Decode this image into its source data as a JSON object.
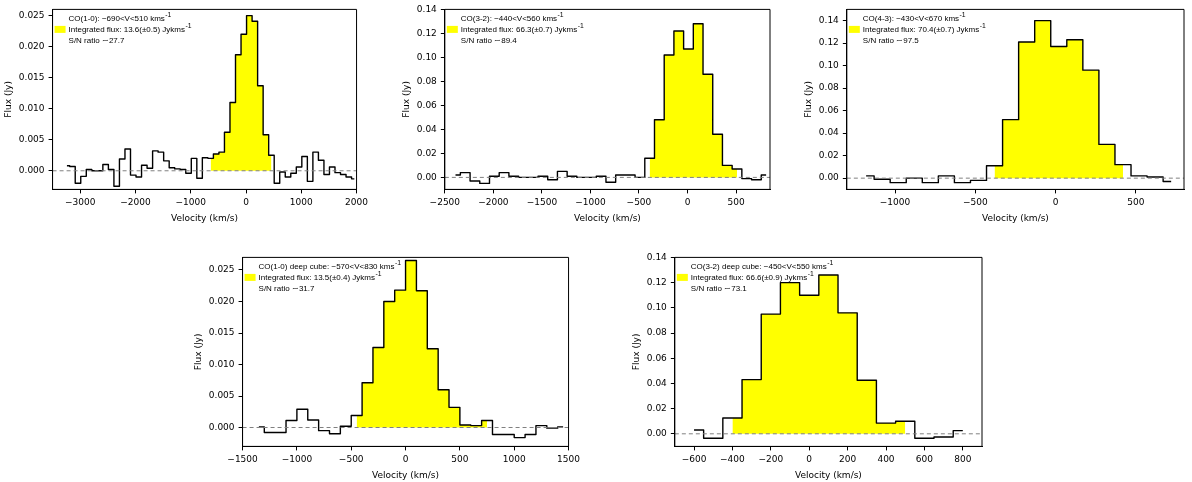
{
  "chart_data": [
    {
      "type": "step",
      "xlabel": "Velocity (km/s)",
      "ylabel": "Flux (Jy)",
      "legend": "top left",
      "annotations": [
        "CO(1-0): −690<V<510 kms$^{-1}$",
        "S/N ratio ∼27.7"
      ],
      "xlim": [
        -3500,
        2000
      ],
      "ylim": [
        -0.003,
        0.026
      ],
      "xticks": [
        {
          "value": -3000,
          "label": "−3000"
        },
        {
          "value": -2000,
          "label": "−2000"
        },
        {
          "value": -1000,
          "label": "−1000"
        },
        0,
        1000,
        2000
      ],
      "yticks": [
        {
          "value": 0,
          "label": "0.000"
        },
        0.005,
        {
          "value": 0.01,
          "label": "0.010"
        },
        0.015,
        {
          "value": 0.02,
          "label": "0.020"
        },
        0.025
      ],
      "ref_lines": [
        {
          "axis": "y",
          "value": 0,
          "color": "#808080",
          "line_style": "dashed"
        }
      ],
      "series": [
        {
          "type": "area",
          "name": "Integrated flux: 13.6(±0.5) Jykms$^{-1}$",
          "color": "#ffff00",
          "x": [
            -640,
            -540,
            -440,
            -340,
            -240,
            -140,
            -40,
            60,
            160,
            260,
            360,
            460
          ],
          "values": [
            0.002,
            0.0027,
            0.003,
            0.0062,
            0.011,
            0.0187,
            0.022,
            0.025,
            0.0241,
            0.0137,
            0.0058,
            0.0025
          ]
        },
        {
          "type": "step",
          "color": "#000000",
          "x": [
            -3240,
            -3140,
            -3040,
            -2940,
            -2840,
            -2740,
            -2640,
            -2540,
            -2440,
            -2340,
            -2240,
            -2140,
            -2040,
            -1940,
            -1840,
            -1740,
            -1640,
            -1540,
            -1440,
            -1340,
            -1240,
            -1140,
            -1040,
            -940,
            -840,
            -740,
            -640,
            -540,
            -440,
            -340,
            -240,
            -140,
            -40,
            60,
            160,
            260,
            360,
            460,
            560,
            660,
            760,
            860,
            960,
            1060,
            1160,
            1260,
            1360,
            1460,
            1560,
            1660,
            1760,
            1860,
            1960
          ],
          "values": [
            0.0008,
            0.0007,
            -0.002,
            -0.0009,
            0.0002,
            0,
            0,
            0.001,
            0.0002,
            -0.0025,
            0.0019,
            0.0035,
            -0.0007,
            -0.001,
            0.0009,
            0.0004,
            0.0032,
            0.003,
            0.0016,
            0.0005,
            0.0003,
            0.0002,
            -0.0004,
            0.002,
            -0.0012,
            0.0021,
            0.002,
            0.0027,
            0.003,
            0.0062,
            0.011,
            0.0187,
            0.022,
            0.025,
            0.0241,
            0.0137,
            0.0058,
            0.0025,
            -0.002,
            -0.0002,
            -0.001,
            -0.0004,
            0.0006,
            0.0023,
            -0.0017,
            0.003,
            0.0017,
            -0.0006,
            0.0006,
            -0.0003,
            -0.0006,
            -0.001,
            -0.0013
          ]
        }
      ]
    },
    {
      "type": "step",
      "xlabel": "Velocity (km/s)",
      "ylabel": "Flux (Jy)",
      "legend": "top left",
      "annotations": [
        "CO(3-2): −440<V<560 kms$^{-1}$",
        "S/N ratio ∼89.4"
      ],
      "xlim": [
        -2500,
        850
      ],
      "ylim": [
        -0.01,
        0.14
      ],
      "xticks": [
        {
          "value": -2500,
          "label": "−2500"
        },
        {
          "value": -2000,
          "label": "−2000"
        },
        {
          "value": -1500,
          "label": "−1500"
        },
        {
          "value": -1000,
          "label": "−1000"
        },
        {
          "value": -500,
          "label": "−500"
        },
        0,
        500
      ],
      "yticks": [
        {
          "value": 0,
          "label": "0.00"
        },
        0.02,
        0.04,
        0.06,
        0.08,
        {
          "value": 0.1,
          "label": "0.10"
        },
        0.12,
        0.14
      ],
      "ref_lines": [
        {
          "axis": "y",
          "value": 0,
          "color": "#808080",
          "line_style": "dashed"
        }
      ],
      "series": [
        {
          "type": "area",
          "name": "Integrated flux: 66.3(±0.7) Jykms$^{-1}$",
          "color": "#ffff00",
          "x": [
            -390,
            -290,
            -190,
            -90,
            10,
            110,
            210,
            310,
            410,
            510
          ],
          "values": [
            0.016,
            0.048,
            0.102,
            0.122,
            0.107,
            0.128,
            0.086,
            0.036,
            0.01,
            0.007
          ]
        },
        {
          "type": "step",
          "color": "#000000",
          "x": [
            -2390,
            -2290,
            -2190,
            -2090,
            -1990,
            -1890,
            -1790,
            -1690,
            -1590,
            -1490,
            -1390,
            -1290,
            -1190,
            -1090,
            -990,
            -890,
            -790,
            -690,
            -590,
            -490,
            -390,
            -290,
            -190,
            -90,
            10,
            110,
            210,
            310,
            410,
            510,
            610,
            710,
            810
          ],
          "values": [
            0.002,
            0.004,
            -0.003,
            -0.005,
            0.001,
            0.004,
            0.001,
            0,
            0,
            0.001,
            -0.002,
            0.005,
            0.001,
            0,
            0,
            0.001,
            -0.004,
            0.002,
            0.002,
            0,
            0.016,
            0.048,
            0.102,
            0.122,
            0.107,
            0.128,
            0.086,
            0.036,
            0.01,
            0.007,
            -0.001,
            -0.002,
            0.002
          ]
        }
      ]
    },
    {
      "type": "step",
      "xlabel": "Velocity (km/s)",
      "ylabel": "Flux (Jy)",
      "legend": "top left",
      "annotations": [
        "CO(4-3): −430<V<670 kms$^{-1}$",
        "S/N ratio ∼97.5"
      ],
      "xlim": [
        -1300,
        800
      ],
      "ylim": [
        -0.01,
        0.15
      ],
      "xticks": [
        {
          "value": -1000,
          "label": "−1000"
        },
        {
          "value": -500,
          "label": "−500"
        },
        0,
        500
      ],
      "yticks": [
        {
          "value": 0,
          "label": "0.00"
        },
        0.02,
        0.04,
        0.06,
        0.08,
        {
          "value": 0.1,
          "label": "0.10"
        },
        0.12,
        0.14
      ],
      "ref_lines": [
        {
          "axis": "y",
          "value": 0,
          "color": "#808080",
          "line_style": "dashed"
        }
      ],
      "series": [
        {
          "type": "area",
          "name": "Integrated flux: 70.4(±0.7) Jykms$^{-1}$",
          "color": "#ffff00",
          "x": [
            -380,
            -280,
            -180,
            -80,
            20,
            120,
            220,
            320,
            420
          ],
          "values": [
            0.011,
            0.052,
            0.121,
            0.14,
            0.117,
            0.123,
            0.096,
            0.03,
            0.012
          ]
        },
        {
          "type": "step",
          "color": "#000000",
          "x": [
            -1180,
            -1080,
            -980,
            -880,
            -780,
            -680,
            -580,
            -480,
            -380,
            -280,
            -180,
            -80,
            20,
            120,
            220,
            320,
            420,
            520,
            620,
            720
          ],
          "values": [
            0.002,
            -0.001,
            -0.004,
            0,
            -0.004,
            0.002,
            -0.004,
            -0.002,
            0.011,
            0.052,
            0.121,
            0.14,
            0.117,
            0.123,
            0.096,
            0.03,
            0.012,
            0.002,
            0.001,
            -0.003
          ]
        }
      ]
    },
    {
      "type": "step",
      "xlabel": "Velocity (km/s)",
      "ylabel": "Flux (Jy)",
      "legend": "top left",
      "annotations": [
        "CO(1-0) deep cube: −570<V<830 kms$^{-1}$",
        "S/N ratio ∼31.7"
      ],
      "xlim": [
        -1500,
        1500
      ],
      "ylim": [
        -0.003,
        0.027
      ],
      "xticks": [
        {
          "value": -1500,
          "label": "−1500"
        },
        {
          "value": -1000,
          "label": "−1000"
        },
        {
          "value": -500,
          "label": "−500"
        },
        0,
        500,
        1000,
        1500
      ],
      "yticks": [
        {
          "value": 0,
          "label": "0.000"
        },
        0.005,
        {
          "value": 0.01,
          "label": "0.010"
        },
        0.015,
        {
          "value": 0.02,
          "label": "0.020"
        },
        0.025
      ],
      "ref_lines": [
        {
          "axis": "y",
          "value": 0,
          "color": "#808080",
          "line_style": "dashed"
        }
      ],
      "series": [
        {
          "type": "area",
          "name": "Integrated flux: 13.5(±0.4) Jykms$^{-1}$",
          "color": "#ffff00",
          "x": [
            -450,
            -350,
            -250,
            -150,
            -50,
            50,
            150,
            250,
            350,
            450,
            550,
            650,
            750
          ],
          "values": [
            0.0019,
            0.0071,
            0.0127,
            0.02,
            0.0218,
            0.0265,
            0.0217,
            0.0125,
            0.006,
            0.0032,
            0.0004,
            0.0003,
            0.0011
          ]
        },
        {
          "type": "step",
          "color": "#000000",
          "x": [
            -1350,
            -1250,
            -1150,
            -1050,
            -950,
            -850,
            -750,
            -650,
            -550,
            -450,
            -350,
            -250,
            -150,
            -50,
            50,
            150,
            250,
            350,
            450,
            550,
            650,
            750,
            850,
            950,
            1050,
            1150,
            1250,
            1350,
            1450
          ],
          "values": [
            0.0001,
            -0.0008,
            -0.0008,
            0.0011,
            0.0029,
            0.0012,
            -0.0005,
            -0.001,
            0.0002,
            0.0019,
            0.0071,
            0.0127,
            0.02,
            0.0218,
            0.0265,
            0.0217,
            0.0125,
            0.006,
            0.0032,
            0.0004,
            0.0003,
            0.0011,
            -0.0011,
            -0.0011,
            -0.0016,
            -0.0011,
            0.0003,
            -0.0001,
            0.0001
          ]
        }
      ]
    },
    {
      "type": "step",
      "xlabel": "Velocity (km/s)",
      "ylabel": "Flux (Jy)",
      "legend": "top left",
      "annotations": [
        "CO(3-2) deep cube: −450<V<550 kms$^{-1}$",
        "S/N ratio ∼73.1"
      ],
      "xlim": [
        -700,
        900
      ],
      "ylim": [
        -0.01,
        0.14
      ],
      "xticks": [
        {
          "value": -600,
          "label": "−600"
        },
        {
          "value": -400,
          "label": "−400"
        },
        {
          "value": -200,
          "label": "−200"
        },
        0,
        200,
        400,
        600,
        800
      ],
      "yticks": [
        {
          "value": 0,
          "label": "0.00"
        },
        0.02,
        0.04,
        0.06,
        0.08,
        {
          "value": 0.1,
          "label": "0.10"
        },
        0.12,
        0.14
      ],
      "ref_lines": [
        {
          "axis": "y",
          "value": 0,
          "color": "#808080",
          "line_style": "dashed"
        }
      ],
      "series": [
        {
          "type": "area",
          "name": "Integrated flux: 66.6(±0.9) Jykms$^{-1}$",
          "color": "#ffff00",
          "x": [
            -400,
            -300,
            -200,
            -100,
            0,
            100,
            200,
            300,
            400,
            500
          ],
          "values": [
            0.0125,
            0.043,
            0.095,
            0.12,
            0.11,
            0.126,
            0.096,
            0.0425,
            0.0085,
            0.01
          ]
        },
        {
          "type": "step",
          "color": "#000000",
          "x": [
            -600,
            -500,
            -400,
            -300,
            -200,
            -100,
            0,
            100,
            200,
            300,
            400,
            500,
            600,
            700,
            800
          ],
          "values": [
            0.003,
            -0.0035,
            0.0125,
            0.043,
            0.095,
            0.12,
            0.11,
            0.126,
            0.096,
            0.0425,
            0.0085,
            0.01,
            -0.0035,
            -0.0025,
            0.0025
          ]
        }
      ]
    }
  ]
}
